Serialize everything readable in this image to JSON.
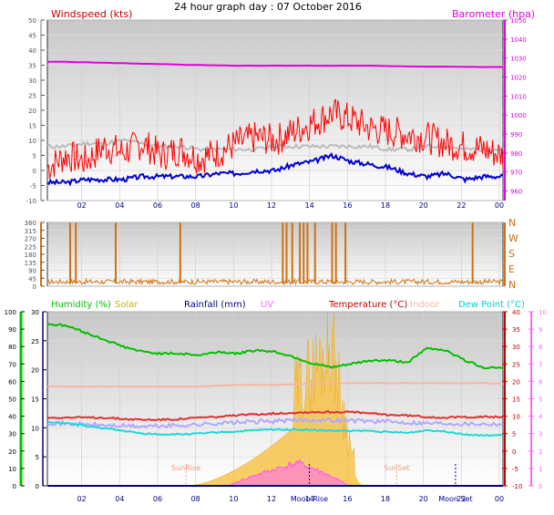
{
  "page_title": "24 hour graph day : 07 October 2016",
  "chart_data": [
    {
      "type": "line",
      "id": "wind-baro",
      "left_title": "Windspeed (kts)",
      "right_title": "Barometer (hpa)",
      "x_tick_labels": [
        "02",
        "04",
        "06",
        "08",
        "10",
        "12",
        "14",
        "16",
        "18",
        "20",
        "22",
        "00"
      ],
      "left_ylim": [
        -10,
        50
      ],
      "left_ticks": [
        -10,
        -5,
        0,
        5,
        10,
        15,
        20,
        25,
        30,
        35,
        40,
        45,
        50
      ],
      "right_ylim": [
        955,
        1050
      ],
      "right_ticks": [
        960,
        970,
        980,
        990,
        1000,
        1010,
        1020,
        1030,
        1040,
        1050
      ],
      "grid": true,
      "x_hours": [
        0,
        1,
        2,
        3,
        4,
        5,
        6,
        7,
        8,
        9,
        10,
        11,
        12,
        13,
        14,
        15,
        16,
        17,
        18,
        19,
        20,
        21,
        22,
        23,
        24
      ],
      "series": [
        {
          "key": "barometer",
          "color": "#e000e0",
          "axis": "right",
          "values": [
            1028,
            1028,
            1027.8,
            1027.5,
            1027.3,
            1027,
            1026.8,
            1026.5,
            1026.3,
            1026.1,
            1026,
            1026,
            1026,
            1026,
            1026,
            1026,
            1026,
            1026,
            1025.8,
            1025.6,
            1025.5,
            1025.5,
            1025.4,
            1025.3,
            1025.3
          ]
        },
        {
          "key": "gust",
          "color": "#ff0000",
          "axis": "left",
          "values": [
            1,
            5,
            3,
            8,
            6,
            9,
            5,
            7,
            4,
            6,
            9,
            11,
            10,
            13,
            16,
            19,
            17,
            14,
            13,
            12,
            11,
            9,
            8,
            7,
            5
          ]
        },
        {
          "key": "speed-avg",
          "color": "#bbbbbb",
          "axis": "left",
          "values": [
            8,
            8,
            9,
            9,
            10,
            9,
            8,
            8,
            7,
            7,
            7,
            7,
            8,
            8,
            8,
            8,
            8,
            8,
            7,
            7,
            8,
            8,
            7,
            7,
            7
          ]
        },
        {
          "key": "speed",
          "color": "#0000d0",
          "axis": "left",
          "values": [
            -4,
            -4,
            -3,
            -3,
            -3,
            -2,
            -2,
            -2,
            -2,
            -1,
            -1,
            0,
            0,
            2,
            3,
            5,
            3,
            2,
            1,
            -1,
            -2,
            -1,
            -3,
            -2,
            -2
          ]
        }
      ]
    },
    {
      "type": "line",
      "id": "wind-direction",
      "right_title": "N W S E N",
      "x_tick_labels": [
        "02",
        "04",
        "06",
        "08",
        "10",
        "12",
        "14",
        "16",
        "18",
        "20",
        "22",
        "00"
      ],
      "ylim": [
        0,
        360
      ],
      "y_ticks": [
        0,
        45,
        90,
        135,
        180,
        225,
        270,
        315,
        360
      ],
      "compass_labels": [
        "N",
        "W",
        "S",
        "E",
        "N"
      ],
      "grid": true,
      "series": [
        {
          "key": "direction",
          "color": "#d07010",
          "baseline": 25,
          "spike_hours": [
            1.2,
            1.5,
            3.6,
            7.0,
            12.4,
            12.6,
            12.9,
            13.3,
            13.5,
            13.7,
            14.1,
            15.0,
            15.2,
            15.7,
            22.4
          ]
        }
      ]
    },
    {
      "type": "line",
      "id": "weather",
      "legend": [
        "Humidity (%)",
        "Solar",
        "Rainfall (mm)",
        "UV",
        "Temperature (°C)",
        "Indoor",
        "Dew Point (°C)"
      ],
      "legend_colors": [
        "#00c000",
        "#c8b400",
        "#000080",
        "#ff66ff",
        "#c00000",
        "#f4b8a0",
        "#00d0d0"
      ],
      "x_tick_labels": [
        "02",
        "04",
        "06",
        "08",
        "10",
        "12",
        "14",
        "16",
        "18",
        "20",
        "22",
        "00"
      ],
      "annotations": [
        "SunRise",
        "Moon Rise",
        "SunSet",
        "Moon Set"
      ],
      "humidity_ylim": [
        0,
        100
      ],
      "humidity_ticks": [
        0,
        10,
        20,
        30,
        40,
        50,
        60,
        70,
        80,
        90,
        100
      ],
      "rain_ylim": [
        0,
        30
      ],
      "rain_ticks": [
        0,
        5,
        10,
        15,
        20,
        25,
        30
      ],
      "temp_ylim": [
        -10,
        40
      ],
      "temp_ticks": [
        -10,
        -5,
        0,
        5,
        10,
        15,
        20,
        25,
        30,
        35,
        40
      ],
      "uv_ylim": [
        0,
        10
      ],
      "uv_ticks": [
        0,
        1,
        2,
        3,
        4,
        5,
        6,
        7,
        8,
        9,
        10
      ],
      "grid": true,
      "x_hours": [
        0,
        1,
        2,
        3,
        4,
        5,
        6,
        7,
        8,
        9,
        10,
        11,
        12,
        13,
        14,
        15,
        16,
        17,
        18,
        19,
        20,
        21,
        22,
        23,
        24
      ],
      "series": [
        {
          "key": "humidity",
          "axis": "humidity",
          "color": "#00c000",
          "values": [
            93,
            92,
            88,
            84,
            80,
            77,
            76,
            76,
            75,
            77,
            76,
            78,
            77,
            74,
            70,
            68,
            70,
            72,
            72,
            71,
            79,
            78,
            72,
            68,
            68
          ]
        },
        {
          "key": "indoor",
          "axis": "temp",
          "color": "#f4b8a0",
          "values": [
            18.5,
            18.5,
            18.5,
            18.5,
            18.5,
            18.5,
            18.5,
            18.5,
            18.5,
            18.8,
            19,
            19,
            19,
            19.2,
            19.3,
            19.4,
            19.5,
            19.5,
            19.5,
            19.5,
            19.5,
            19.5,
            19.5,
            19.5,
            19.3
          ]
        },
        {
          "key": "temperature",
          "axis": "temp",
          "color": "#e03030",
          "values": [
            9.6,
            9.6,
            9.6,
            9.6,
            9.2,
            9.0,
            9.0,
            9.2,
            9.6,
            9.8,
            10.2,
            10.6,
            10.8,
            11.0,
            11.2,
            11.2,
            11.2,
            10.8,
            10.4,
            10.2,
            9.8,
            9.6,
            9.8,
            9.8,
            9.8
          ]
        },
        {
          "key": "wind-chill",
          "axis": "temp",
          "color": "#b0a8ff",
          "values": [
            8.2,
            7.8,
            7.6,
            7.4,
            7.2,
            7.0,
            7.2,
            7.4,
            7.6,
            8.0,
            8.2,
            8.4,
            8.6,
            8.8,
            9.0,
            8.8,
            8.8,
            8.6,
            8.4,
            8.2,
            8.0,
            8.0,
            7.8,
            7.8,
            7.8
          ]
        },
        {
          "key": "dew-point",
          "axis": "temp",
          "color": "#20d8d8",
          "values": [
            8.2,
            8.0,
            7.2,
            6.5,
            5.8,
            5.0,
            4.8,
            4.8,
            5.0,
            5.4,
            5.6,
            6.0,
            6.2,
            6.2,
            6.0,
            5.8,
            5.8,
            5.8,
            5.4,
            5.2,
            6.0,
            5.6,
            4.8,
            4.4,
            4.6
          ]
        },
        {
          "key": "rainfall",
          "axis": "rain",
          "color": "#000080",
          "values": [
            0,
            0,
            0,
            0,
            0,
            0,
            0,
            0,
            0,
            0,
            0,
            0,
            0,
            0,
            0,
            0,
            0,
            0,
            0,
            0,
            0,
            0,
            0,
            0,
            0
          ]
        }
      ],
      "solar": {
        "color": "#f8c040",
        "start": 7.4,
        "end": 16.6,
        "peak": 15.0,
        "peak_value": 34
      },
      "uv": {
        "color": "#ff66ff",
        "start": 9.6,
        "end": 15.8,
        "peak": 13.2,
        "peak_value": 1.4
      }
    }
  ]
}
